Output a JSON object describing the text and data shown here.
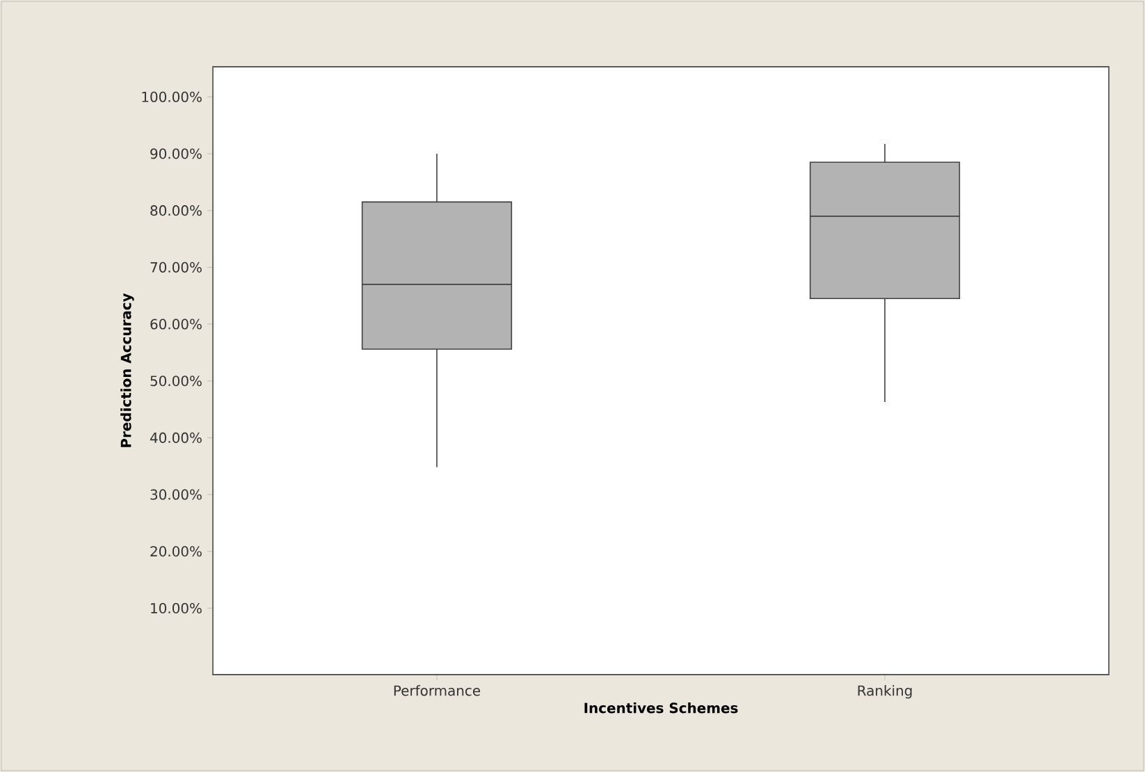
{
  "chart_data": {
    "type": "box",
    "xlabel": "Incentives Schemes",
    "ylabel": "Prediction Accuracy",
    "categories": [
      "Performance",
      "Ranking"
    ],
    "boxes": [
      {
        "low": 34.8,
        "q1": 55.6,
        "median": 67,
        "q3": 81.5,
        "high": 90
      },
      {
        "low": 46.3,
        "q1": 64.5,
        "median": 79,
        "q3": 88.5,
        "high": 91.7
      }
    ],
    "color": "#b3b3b3",
    "ylim": [
      -1.7,
      105.3
    ],
    "yticks": [
      {
        "value": 10,
        "label": "10.00%"
      },
      {
        "value": 20,
        "label": "20.00%"
      },
      {
        "value": 30,
        "label": "30.00%"
      },
      {
        "value": 40,
        "label": "40.00%"
      },
      {
        "value": 50,
        "label": "50.00%"
      },
      {
        "value": 60,
        "label": "60.00%"
      },
      {
        "value": 70,
        "label": "70.00%"
      },
      {
        "value": 80,
        "label": "80.00%"
      },
      {
        "value": 90,
        "label": "90.00%"
      },
      {
        "value": 100,
        "label": "100.00%"
      }
    ],
    "tick_labels": true
  }
}
